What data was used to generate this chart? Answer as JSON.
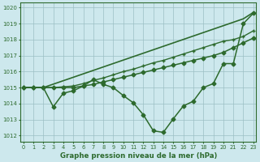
{
  "bg_color": "#cde8ed",
  "line_color": "#2d6a2d",
  "grid_color": "#9bbfc4",
  "ylabel_ticks": [
    1012,
    1013,
    1014,
    1015,
    1016,
    1017,
    1018,
    1019,
    1020
  ],
  "xlabel_ticks": [
    0,
    1,
    2,
    3,
    4,
    5,
    6,
    7,
    8,
    9,
    10,
    11,
    12,
    13,
    14,
    15,
    16,
    17,
    18,
    19,
    20,
    21,
    22,
    23
  ],
  "xlabel": "Graphe pression niveau de la mer (hPa)",
  "series": [
    {
      "x": [
        0,
        1,
        2,
        22,
        23
      ],
      "y": [
        1015.0,
        1015.0,
        1015.0,
        1019.3,
        1019.7
      ],
      "marker": null,
      "markersize": 0,
      "linewidth": 1.2,
      "linestyle": "-"
    },
    {
      "x": [
        0,
        1,
        2,
        3,
        4,
        5,
        6,
        7,
        8,
        9,
        10,
        11,
        12,
        13,
        14,
        15,
        16,
        17,
        18,
        19,
        20,
        21,
        22,
        23
      ],
      "y": [
        1015.0,
        1015.0,
        1015.0,
        1015.0,
        1015.05,
        1015.1,
        1015.25,
        1015.45,
        1015.6,
        1015.8,
        1016.0,
        1016.15,
        1016.35,
        1016.55,
        1016.7,
        1016.9,
        1017.1,
        1017.3,
        1017.5,
        1017.7,
        1017.9,
        1018.0,
        1018.2,
        1018.55
      ],
      "marker": "+",
      "markersize": 3.5,
      "linewidth": 1.0,
      "linestyle": "-"
    },
    {
      "x": [
        0,
        1,
        2,
        3,
        4,
        5,
        6,
        7,
        8,
        9,
        10,
        11,
        12,
        13,
        14,
        15,
        16,
        17,
        18,
        19,
        20,
        21,
        22,
        23
      ],
      "y": [
        1015.0,
        1015.0,
        1015.0,
        1015.0,
        1015.0,
        1015.0,
        1015.1,
        1015.2,
        1015.35,
        1015.5,
        1015.65,
        1015.8,
        1015.95,
        1016.1,
        1016.25,
        1016.4,
        1016.55,
        1016.7,
        1016.85,
        1017.0,
        1017.2,
        1017.5,
        1017.8,
        1018.1
      ],
      "marker": "D",
      "markersize": 2.5,
      "linewidth": 1.1,
      "linestyle": "-"
    },
    {
      "x": [
        0,
        1,
        2,
        3,
        4,
        5,
        6,
        7,
        8,
        9,
        10,
        11,
        12,
        13,
        14,
        15,
        16,
        17,
        18,
        19,
        20,
        21,
        22,
        23
      ],
      "y": [
        1015.0,
        1015.0,
        1015.0,
        1013.8,
        1014.65,
        1014.8,
        1015.1,
        1015.5,
        1015.2,
        1015.0,
        1014.5,
        1014.05,
        1013.3,
        1012.3,
        1012.2,
        1013.05,
        1013.85,
        1014.15,
        1015.0,
        1015.25,
        1016.5,
        1016.5,
        1019.0,
        1019.65
      ],
      "marker": "D",
      "markersize": 2.5,
      "linewidth": 1.1,
      "linestyle": "-"
    }
  ],
  "xlim": [
    -0.3,
    23.3
  ],
  "ylim": [
    1011.6,
    1020.3
  ],
  "figsize": [
    3.2,
    2.0
  ],
  "dpi": 100
}
